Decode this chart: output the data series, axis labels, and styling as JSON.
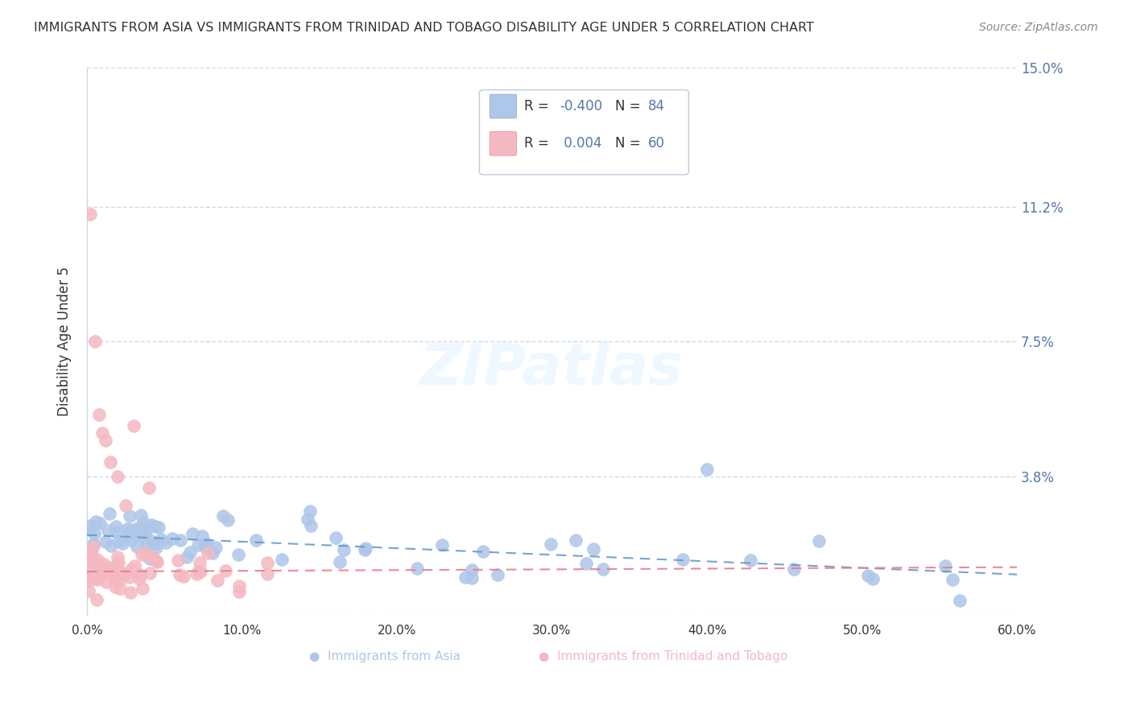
{
  "title": "IMMIGRANTS FROM ASIA VS IMMIGRANTS FROM TRINIDAD AND TOBAGO DISABILITY AGE UNDER 5 CORRELATION CHART",
  "source": "Source: ZipAtlas.com",
  "ylabel": "Disability Age Under 5",
  "xlim": [
    0.0,
    0.6
  ],
  "ylim": [
    0.0,
    0.15
  ],
  "xticks": [
    0.0,
    0.1,
    0.2,
    0.3,
    0.4,
    0.5,
    0.6
  ],
  "xticklabels": [
    "0.0%",
    "10.0%",
    "20.0%",
    "30.0%",
    "40.0%",
    "50.0%",
    "60.0%"
  ],
  "ytick_positions": [
    0.0,
    0.038,
    0.075,
    0.112,
    0.15
  ],
  "ytick_labels_right": [
    "",
    "3.8%",
    "7.5%",
    "11.2%",
    "15.0%"
  ],
  "legend_entries": [
    {
      "label": "Immigrants from Asia",
      "color": "#aec6e8",
      "R": "-0.400",
      "N": "84"
    },
    {
      "label": "Immigrants from Trinidad and Tobago",
      "color": "#f4b8c1",
      "R": "0.004",
      "N": "60"
    }
  ],
  "blue_color": "#aec6e8",
  "pink_color": "#f4b8c1",
  "blue_line_color": "#6699cc",
  "pink_line_color": "#e87d8a",
  "background_color": "#ffffff",
  "grid_color": "#c8d8e8",
  "title_color": "#333333",
  "tick_color": "#5577aa",
  "watermark_text": "ZIPatlas",
  "blue_slope": -0.018,
  "blue_intercept": 0.022,
  "pink_slope": 0.002,
  "pink_intercept": 0.012
}
